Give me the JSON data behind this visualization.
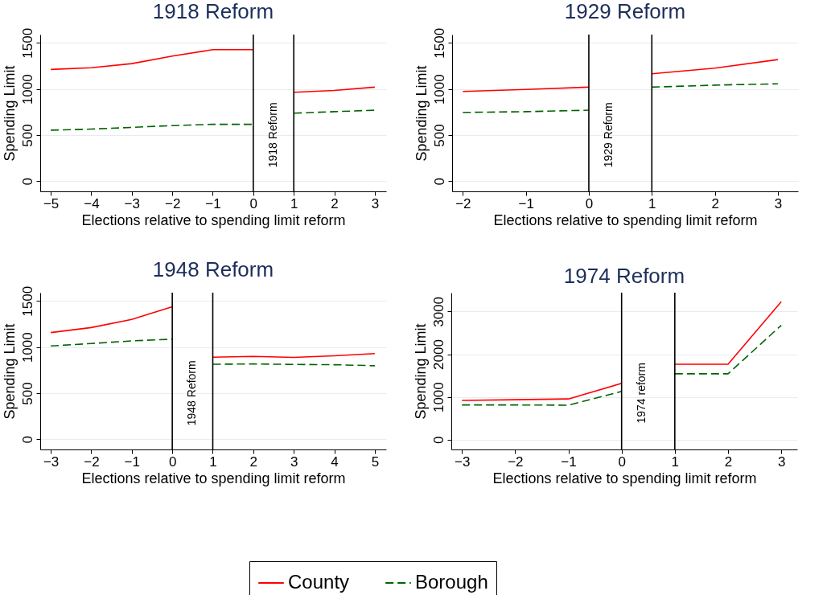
{
  "chart_data": [
    {
      "type": "line",
      "title": "1918 Reform",
      "xlabel": "Elections relative to spending limit reform",
      "ylabel": "Spending Limit",
      "x": [
        -5,
        -4,
        -3,
        -2,
        -1,
        0,
        0.5,
        1,
        2,
        3
      ],
      "xlim": [
        -5.26,
        3.28
      ],
      "xticks": [
        -5,
        -4,
        -3,
        -2,
        -1,
        0,
        1,
        2,
        3
      ],
      "ylim": [
        -110,
        1590
      ],
      "yticks": [
        0,
        500,
        1000,
        1500
      ],
      "grid": "y",
      "legend": "bottom",
      "series": [
        {
          "name": "County",
          "color": "#ff0000",
          "line_style": "solid",
          "values": [
            1212,
            1231,
            1275,
            1357,
            1426,
            1426,
            null,
            965,
            984,
            1020
          ]
        },
        {
          "name": "Borough",
          "color": "#006400",
          "line_style": "dashed",
          "values": [
            554,
            565,
            584,
            603,
            617,
            617,
            null,
            738,
            754,
            770
          ]
        }
      ],
      "ref_lines": [
        {
          "axis": "x",
          "value": 0,
          "label": "1918 Reform"
        },
        {
          "axis": "x",
          "value": 1
        }
      ]
    },
    {
      "type": "line",
      "title": "1929 Reform",
      "xlabel": "Elections relative to spending limit reform",
      "ylabel": "Spending Limit",
      "x": [
        -2,
        -1,
        0,
        0.5,
        1,
        2,
        3
      ],
      "xlim": [
        -2.17,
        3.32
      ],
      "xticks": [
        -2,
        -1,
        0,
        1,
        2,
        3
      ],
      "ylim": [
        -110,
        1590
      ],
      "yticks": [
        0,
        500,
        1000,
        1500
      ],
      "grid": "y",
      "legend": "bottom",
      "series": [
        {
          "name": "County",
          "color": "#ff0000",
          "line_style": "solid",
          "values": [
            973,
            995,
            1020,
            null,
            1165,
            1226,
            1319
          ]
        },
        {
          "name": "Borough",
          "color": "#006400",
          "line_style": "dashed",
          "values": [
            746,
            754,
            770,
            null,
            1020,
            1042,
            1056
          ]
        }
      ],
      "ref_lines": [
        {
          "axis": "x",
          "value": 0,
          "label": "1929 Reform"
        },
        {
          "axis": "x",
          "value": 1
        }
      ]
    },
    {
      "type": "line",
      "title": "1948 Reform",
      "xlabel": "Elections relative to spending limit reform",
      "ylabel": "Spending Limit",
      "x": [
        -3,
        -2,
        -1,
        0,
        0.5,
        1,
        2,
        3,
        4,
        5
      ],
      "xlim": [
        -3.26,
        5.28
      ],
      "xticks": [
        -3,
        -2,
        -1,
        0,
        1,
        2,
        3,
        4,
        5
      ],
      "ylim": [
        -110,
        1590
      ],
      "yticks": [
        0,
        500,
        1000,
        1500
      ],
      "grid": "y",
      "legend": "bottom",
      "series": [
        {
          "name": "County",
          "color": "#ff0000",
          "line_style": "solid",
          "values": [
            1157,
            1212,
            1300,
            1437,
            null,
            891,
            899,
            888,
            905,
            929
          ]
        },
        {
          "name": "Borough",
          "color": "#006400",
          "line_style": "dashed",
          "values": [
            1012,
            1039,
            1067,
            1086,
            null,
            814,
            817,
            812,
            809,
            798
          ]
        }
      ],
      "ref_lines": [
        {
          "axis": "x",
          "value": 0,
          "label": "1948 Reform"
        },
        {
          "axis": "x",
          "value": 1
        }
      ]
    },
    {
      "type": "line",
      "title": "1974 Reform",
      "xlabel": "Elections relative to spending limit reform",
      "ylabel": "Spending Limit",
      "x": [
        -3,
        -2,
        -1,
        0,
        0.5,
        1,
        2,
        3
      ],
      "xlim": [
        -3.2,
        3.3
      ],
      "xticks": [
        -3,
        -2,
        -1,
        0,
        1,
        2,
        3
      ],
      "ylim": [
        -230,
        3440
      ],
      "yticks": [
        0,
        1000,
        2000,
        3000
      ],
      "grid": "y",
      "legend": "bottom",
      "series": [
        {
          "name": "County",
          "color": "#ff0000",
          "line_style": "solid",
          "values": [
            918,
            935,
            953,
            1318,
            null,
            1765,
            1765,
            3229
          ]
        },
        {
          "name": "Borough",
          "color": "#006400",
          "line_style": "dashed",
          "values": [
            812,
            812,
            806,
            1129,
            null,
            1541,
            1541,
            2676
          ]
        }
      ],
      "ref_lines": [
        {
          "axis": "x",
          "value": 0,
          "label": "1974 reform"
        },
        {
          "axis": "x",
          "value": 1
        }
      ]
    }
  ]
}
